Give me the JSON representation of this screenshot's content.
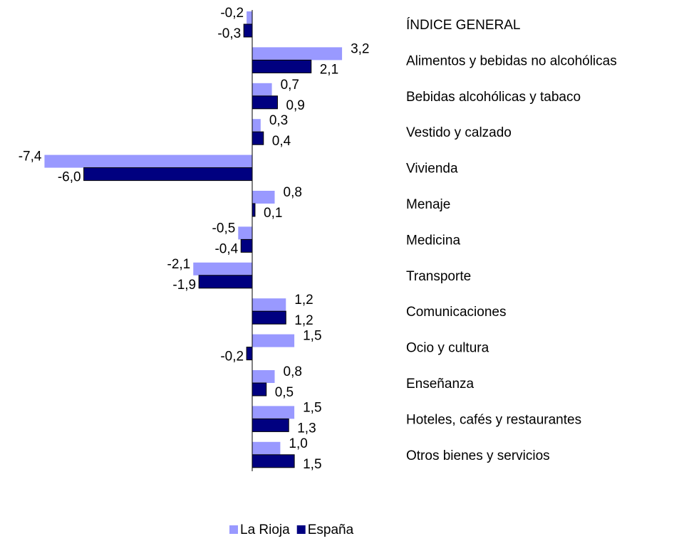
{
  "chart_data": {
    "type": "hbar",
    "categories": [
      "ÍNDICE GENERAL",
      "Alimentos y bebidas no alcohólicas",
      "Bebidas alcohólicas y tabaco",
      "Vestido y calzado",
      "Vivienda",
      "Menaje",
      "Medicina",
      "Transporte",
      "Comunicaciones",
      "Ocio y cultura",
      "Enseñanza",
      "Hoteles, cafés y restaurantes",
      "Otros bienes y servicios"
    ],
    "series": [
      {
        "name": "La Rioja",
        "color": "#9999ff",
        "values": [
          -0.2,
          3.2,
          0.7,
          0.3,
          -7.4,
          0.8,
          -0.5,
          -2.1,
          1.2,
          1.5,
          0.8,
          1.5,
          1.0
        ],
        "value_labels": [
          "-0,2",
          "3,2",
          "0,7",
          "0,3",
          "-7,4",
          "0,8",
          "-0,5",
          "-2,1",
          "1,2",
          "1,5",
          "0,8",
          "1,5",
          "1,0"
        ]
      },
      {
        "name": "España",
        "color": "#000080",
        "values": [
          -0.3,
          2.1,
          0.9,
          0.4,
          -6.0,
          0.1,
          -0.4,
          -1.9,
          1.2,
          -0.2,
          0.5,
          1.3,
          1.5
        ],
        "value_labels": [
          "-0,3",
          "2,1",
          "0,9",
          "0,4",
          "-6,0",
          "0,1",
          "-0,4",
          "-1,9",
          "1,2",
          "-0,2",
          "0,5",
          "1,3",
          "1,5"
        ]
      }
    ],
    "legend": "bottom"
  }
}
